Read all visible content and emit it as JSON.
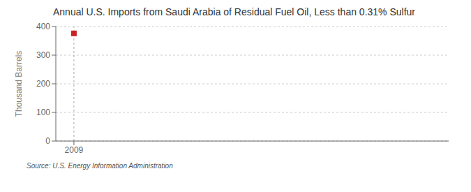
{
  "chart_data": {
    "type": "scatter",
    "title": "Annual U.S. Imports from Saudi Arabia of Residual Fuel Oil, Less than 0.31% Sulfur",
    "ylabel": "Thousand Barrels",
    "annotations": [
      "Source: U.S. Energy Information Administration"
    ],
    "x": [
      2009
    ],
    "values": [
      376
    ],
    "color": "#cc2222",
    "marker": "square",
    "xlim": [
      2008.3,
      2023.5
    ],
    "ylim": [
      0,
      400
    ],
    "xticks": [
      2009
    ],
    "yticks": [
      0,
      100,
      200,
      300,
      400
    ],
    "grid": "y"
  }
}
